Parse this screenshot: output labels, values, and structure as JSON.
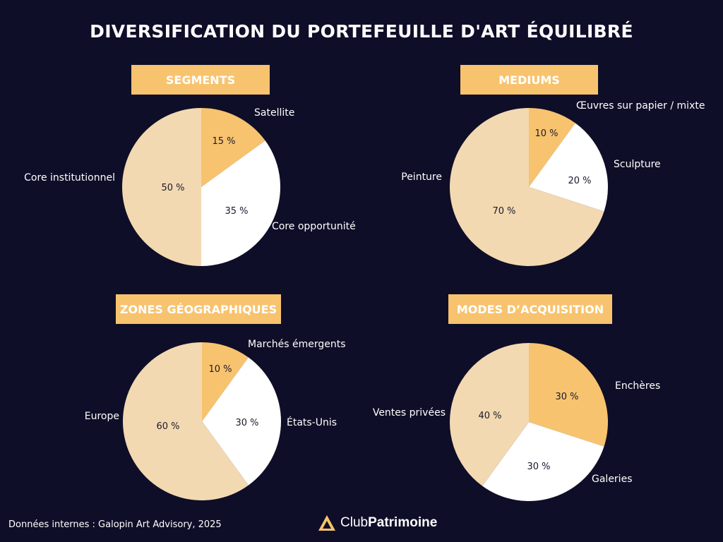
{
  "title": "DIVERSIFICATION DU PORTEFEUILLE D'ART ÉQUILIBRÉ",
  "colors": {
    "background": "#0f0e28",
    "header_box": "#f8c36e",
    "slice_orange": "#f8c36e",
    "slice_white": "#ffffff",
    "slice_beige": "#f3d9b1",
    "label_text": "#ffffff",
    "value_text": "#1a1a2e"
  },
  "chart_data": [
    {
      "type": "pie",
      "title": "SEGMENTS",
      "slices": [
        {
          "label": "Satellite",
          "value": 15,
          "value_label": "15 %",
          "color": "#f8c36e"
        },
        {
          "label": "Core opportunité",
          "value": 35,
          "value_label": "35 %",
          "color": "#ffffff"
        },
        {
          "label": "Core institutionnel",
          "value": 50,
          "value_label": "50 %",
          "color": "#f3d9b1"
        }
      ]
    },
    {
      "type": "pie",
      "title": "MEDIUMS",
      "slices": [
        {
          "label": "Œuvres sur papier / mixte",
          "value": 10,
          "value_label": "10 %",
          "color": "#f8c36e"
        },
        {
          "label": "Sculpture",
          "value": 20,
          "value_label": "20 %",
          "color": "#ffffff"
        },
        {
          "label": "Peinture",
          "value": 70,
          "value_label": "70 %",
          "color": "#f3d9b1"
        }
      ]
    },
    {
      "type": "pie",
      "title": "ZONES GÉOGRAPHIQUES",
      "slices": [
        {
          "label": "Marchés émergents",
          "value": 10,
          "value_label": "10 %",
          "color": "#f8c36e"
        },
        {
          "label": "États-Unis",
          "value": 30,
          "value_label": "30 %",
          "color": "#ffffff"
        },
        {
          "label": "Europe",
          "value": 60,
          "value_label": "60 %",
          "color": "#f3d9b1"
        }
      ]
    },
    {
      "type": "pie",
      "title": "MODES D’ACQUISITION",
      "slices": [
        {
          "label": "Enchères",
          "value": 30,
          "value_label": "30 %",
          "color": "#f8c36e"
        },
        {
          "label": "Galeries",
          "value": 30,
          "value_label": "30 %",
          "color": "#ffffff"
        },
        {
          "label": "Ventes privées",
          "value": 40,
          "value_label": "40 %",
          "color": "#f3d9b1"
        }
      ]
    }
  ],
  "footer": {
    "source": "Données internes : Galopin Art Advisory, 2025",
    "brand_light": "Club",
    "brand_bold": "Patrimoine",
    "brand_icon": "triangle-logo-icon"
  }
}
